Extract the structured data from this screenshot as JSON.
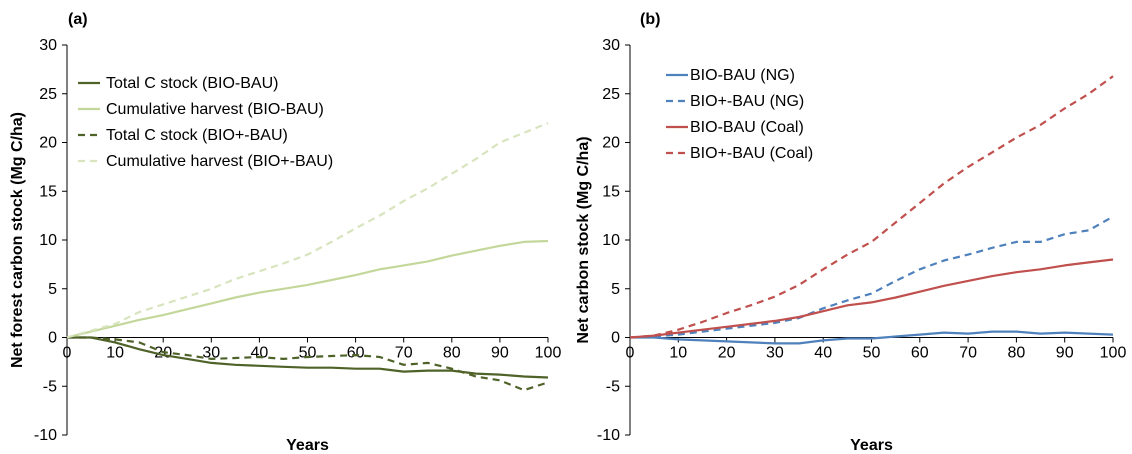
{
  "chart_data": [
    {
      "type": "line",
      "panel_label": "(a)",
      "xlabel": "Years",
      "ylabel": "Net forest carbon stock (Mg C/ha)",
      "xlim": [
        0,
        100
      ],
      "ylim": [
        -10,
        30
      ],
      "xticks": [
        0,
        10,
        20,
        30,
        40,
        50,
        60,
        70,
        80,
        90,
        100
      ],
      "yticks": [
        -10,
        -5,
        0,
        5,
        10,
        15,
        20,
        25,
        30
      ],
      "grid": false,
      "legend_position": "top-left",
      "series": [
        {
          "name": "Total C stock (BIO-BAU)",
          "color": "#4f6228",
          "dash": "solid",
          "x": [
            0,
            5,
            10,
            15,
            20,
            25,
            30,
            35,
            40,
            45,
            50,
            55,
            60,
            65,
            70,
            75,
            80,
            85,
            90,
            95,
            100
          ],
          "y": [
            0,
            0,
            -0.5,
            -1.2,
            -1.8,
            -2.2,
            -2.6,
            -2.8,
            -2.9,
            -3.0,
            -3.1,
            -3.1,
            -3.2,
            -3.2,
            -3.5,
            -3.4,
            -3.4,
            -3.7,
            -3.8,
            -4.0,
            -4.1
          ]
        },
        {
          "name": "Cumulative harvest (BIO-BAU)",
          "color": "#c4d79b",
          "dash": "solid",
          "x": [
            0,
            5,
            10,
            15,
            20,
            25,
            30,
            35,
            40,
            45,
            50,
            55,
            60,
            65,
            70,
            75,
            80,
            85,
            90,
            95,
            100
          ],
          "y": [
            0,
            0.6,
            1.2,
            1.8,
            2.3,
            2.9,
            3.5,
            4.1,
            4.6,
            5.0,
            5.4,
            5.9,
            6.4,
            7.0,
            7.4,
            7.8,
            8.4,
            8.9,
            9.4,
            9.8,
            9.9
          ]
        },
        {
          "name": "Total C stock (BIO+-BAU)",
          "color": "#4f6228",
          "dash": "dashed",
          "x": [
            0,
            5,
            10,
            15,
            20,
            25,
            30,
            35,
            40,
            45,
            50,
            55,
            60,
            65,
            70,
            75,
            80,
            85,
            90,
            95,
            100
          ],
          "y": [
            0,
            0,
            -0.2,
            -0.5,
            -1.5,
            -1.8,
            -2.2,
            -2.1,
            -2.0,
            -2.2,
            -2.0,
            -1.9,
            -1.8,
            -2.0,
            -2.8,
            -2.6,
            -3.2,
            -4.0,
            -4.4,
            -5.4,
            -4.6
          ]
        },
        {
          "name": "Cumulative harvest (BIO+-BAU)",
          "color": "#d7e4bd",
          "dash": "dashed",
          "x": [
            0,
            5,
            10,
            15,
            20,
            25,
            30,
            35,
            40,
            45,
            50,
            55,
            60,
            65,
            70,
            75,
            80,
            85,
            90,
            95,
            100
          ],
          "y": [
            0,
            0.7,
            1.4,
            2.6,
            3.4,
            4.2,
            5.0,
            6.0,
            6.8,
            7.6,
            8.5,
            9.8,
            11.2,
            12.5,
            14.0,
            15.3,
            16.8,
            18.3,
            20.0,
            21.0,
            22.0
          ]
        }
      ]
    },
    {
      "type": "line",
      "panel_label": "(b)",
      "xlabel": "Years",
      "ylabel": "Net carbon stock (Mg C/ha)",
      "xlim": [
        0,
        100
      ],
      "ylim": [
        -10,
        30
      ],
      "xticks": [
        0,
        10,
        20,
        30,
        40,
        50,
        60,
        70,
        80,
        90,
        100
      ],
      "yticks": [
        -10,
        -5,
        0,
        5,
        10,
        15,
        20,
        25,
        30
      ],
      "grid": false,
      "legend_position": "top-left",
      "series": [
        {
          "name": "BIO-BAU (NG)",
          "color": "#4f81bd",
          "dash": "solid",
          "x": [
            0,
            5,
            10,
            15,
            20,
            25,
            30,
            35,
            40,
            45,
            50,
            55,
            60,
            65,
            70,
            75,
            80,
            85,
            90,
            95,
            100
          ],
          "y": [
            0,
            0,
            -0.2,
            -0.3,
            -0.4,
            -0.5,
            -0.6,
            -0.6,
            -0.3,
            -0.1,
            -0.1,
            0.1,
            0.3,
            0.5,
            0.4,
            0.6,
            0.6,
            0.4,
            0.5,
            0.4,
            0.3
          ]
        },
        {
          "name": "BIO+-BAU (NG)",
          "color": "#4f81bd",
          "dash": "dashed",
          "x": [
            0,
            5,
            10,
            15,
            20,
            25,
            30,
            35,
            40,
            45,
            50,
            55,
            60,
            65,
            70,
            75,
            80,
            85,
            90,
            95,
            100
          ],
          "y": [
            0,
            0.1,
            0.3,
            0.6,
            0.9,
            1.2,
            1.5,
            2.0,
            3.0,
            3.8,
            4.5,
            5.8,
            7.0,
            7.9,
            8.5,
            9.2,
            9.8,
            9.8,
            10.6,
            11.0,
            12.4
          ]
        },
        {
          "name": "BIO-BAU (Coal)",
          "color": "#c0504d",
          "dash": "solid",
          "x": [
            0,
            5,
            10,
            15,
            20,
            25,
            30,
            35,
            40,
            45,
            50,
            55,
            60,
            65,
            70,
            75,
            80,
            85,
            90,
            95,
            100
          ],
          "y": [
            0,
            0.2,
            0.5,
            0.8,
            1.1,
            1.4,
            1.7,
            2.1,
            2.7,
            3.3,
            3.6,
            4.1,
            4.7,
            5.3,
            5.8,
            6.3,
            6.7,
            7.0,
            7.4,
            7.7,
            8.0
          ]
        },
        {
          "name": "BIO+-BAU (Coal)",
          "color": "#c0504d",
          "dash": "dashed",
          "x": [
            0,
            5,
            10,
            15,
            20,
            25,
            30,
            35,
            40,
            45,
            50,
            55,
            60,
            65,
            70,
            75,
            80,
            85,
            90,
            95,
            100
          ],
          "y": [
            0,
            0.2,
            0.8,
            1.6,
            2.5,
            3.3,
            4.2,
            5.4,
            7.0,
            8.5,
            9.8,
            11.8,
            13.8,
            15.8,
            17.5,
            19.0,
            20.5,
            21.8,
            23.5,
            25.0,
            26.8
          ]
        }
      ]
    }
  ]
}
